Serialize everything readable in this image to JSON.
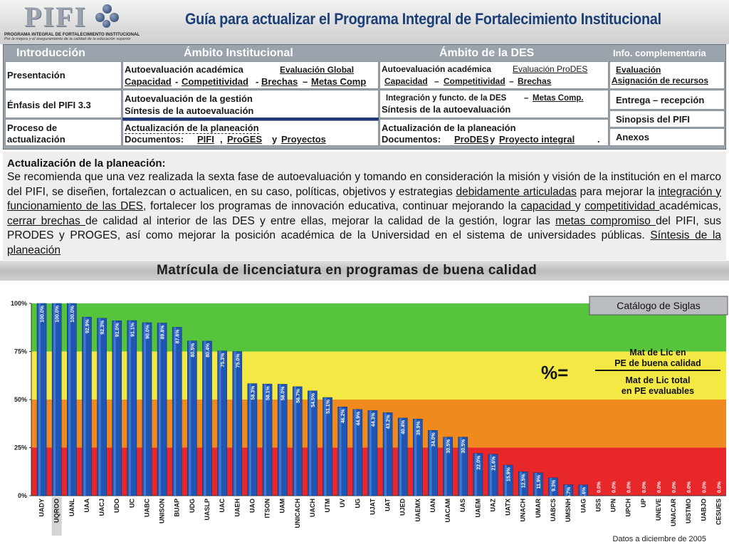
{
  "header": {
    "logo_word": "PIFI",
    "logo_line1": "PROGRAMA INTEGRAL DE FORTALECIMIENTO INSTITUCIONAL",
    "logo_line2": "Por la mejora y el aseguramiento de la calidad de la educación superior",
    "title": "Guía para actualizar el Programa Integral de Fortalecimiento Institucional"
  },
  "nav": {
    "headers": {
      "intro": "Introducción",
      "institucional": "Ámbito Institucional",
      "des": "Ámbito de la DES",
      "info": "Info. complementaria"
    },
    "intro": [
      "Presentación",
      "Énfasis del PIFI 3.3",
      "Proceso de",
      "actualización"
    ],
    "inst_row1": {
      "label": "Autoevaluación académica",
      "link": "Evaluación Global",
      "line2_a": "Capacidad",
      "sep1": "-",
      "line2_b": "Competitividad",
      "sep2": "-",
      "line2_c": "Brechas",
      "sep3": "–",
      "line2_d": "Metas Comp"
    },
    "inst_row2": {
      "line1": "Autoevaluación de la gestión",
      "line2": "Síntesis de la autoevaluación"
    },
    "inst_row3": {
      "line1": "Actualización de la planeación",
      "prefix": "Documentos:",
      "d1": "PIFI",
      "sep": ",",
      "d2": "ProGES",
      "and": "y",
      "d3": "Proyectos"
    },
    "des_row1": {
      "label": "Autoevaluación académica",
      "link": "Evaluación ProDES",
      "l2a": "Capacidad",
      "s1": "–",
      "l2b": "Competitividad",
      "s2": "–",
      "l2c": "Brechas"
    },
    "des_row2": {
      "line1": "Integración y functo. de la DES",
      "sep": "–",
      "link": "Metas Comp.",
      "line2": "Síntesis de la autoevaluación"
    },
    "des_row3": {
      "line1": "Actualización de la planeación",
      "prefix": "Documentos:",
      "d1": "ProDES",
      "and": "y",
      "d2": "Proyecto integral",
      "end": "."
    },
    "info": {
      "eval": "Evaluación",
      "asig": "Asignación de recursos",
      "entrega": "Entrega – recepción",
      "sinopsis": "Sinopsis del PIFI",
      "anexos": "Anexos"
    }
  },
  "description": {
    "title": "Actualización de la planeación:",
    "p1": "Se recomienda que una vez realizada la sexta fase de autoevaluación y tomando en consideración la misión y visión de la institución en el marco del PIFI, se diseñen, fortalezcan o actualicen, en su caso, políticas, objetivos y estrategias ",
    "u1": "debidamente articuladas",
    "p2": " para mejorar la ",
    "u2": "integración y funcionamiento de las DES",
    "p3": ", fortalecer los programas de innovación educativa, continuar mejorando la ",
    "u3": "capacidad ",
    "p4": "y ",
    "u4": "competitividad ",
    "p5": "académicas,  ",
    "u5": "cerrar brechas ",
    "p6": "de calidad al interior de las DES y entre ellas, mejorar la calidad de la gestión, lograr las ",
    "u6": "metas compromiso ",
    "p7": "del PIFI, sus PRODES y PROGES, así como mejorar la posición académica de la Universidad en el sistema de universidades públicas. ",
    "u7": "Síntesis de la planeación"
  },
  "chart_banner": "Matrícula de licenciatura en programas de buena calidad",
  "chart_data": {
    "type": "bar",
    "title": "Matrícula de licenciatura en programas de buena calidad",
    "ylim": [
      0,
      100
    ],
    "yticks": [
      "0%",
      "25%",
      "50%",
      "75%",
      "100%"
    ],
    "bands": [
      {
        "from": 0,
        "to": 25,
        "color": "#e8272b"
      },
      {
        "from": 25,
        "to": 50,
        "color": "#f08a1e"
      },
      {
        "from": 50,
        "to": 75,
        "color": "#f3e844"
      },
      {
        "from": 75,
        "to": 100,
        "color": "#56c43c"
      }
    ],
    "bar_color": "#1f56b3",
    "categories": [
      "UADY",
      "UQROO",
      "UANL",
      "UAA",
      "UACJ",
      "UDO",
      "UC",
      "UABC",
      "UNISON",
      "BUAP",
      "UDG",
      "UASLP",
      "UAC",
      "UAEH",
      "UAO",
      "ITSON",
      "UAM",
      "UNICACH",
      "UACH",
      "UTM",
      "UV",
      "UG",
      "UJAT",
      "UAT",
      "UJED",
      "UAEMX",
      "UAN",
      "UACAM",
      "UAS",
      "UAEM",
      "UAZ",
      "UATX",
      "UNACH",
      "UMAR",
      "UABCS",
      "UMSNH",
      "UAG",
      "USS",
      "UPN",
      "UPCH",
      "UP",
      "UNEVE",
      "UNACAR",
      "UISTMO",
      "UABJO",
      "CESUES"
    ],
    "values": [
      100.0,
      100.0,
      100.0,
      92.9,
      92.3,
      91.0,
      91.1,
      90.0,
      89.8,
      87.6,
      80.5,
      80.4,
      75.3,
      75.0,
      58.3,
      58.1,
      58.0,
      56.7,
      54.5,
      51.1,
      46.2,
      44.9,
      44.3,
      43.2,
      40.4,
      39.9,
      34.0,
      30.5,
      30.5,
      22.0,
      21.6,
      15.9,
      12.5,
      11.9,
      9.3,
      5.7,
      5.6,
      0.0,
      0.0,
      0.0,
      0.0,
      0.0,
      0.0,
      0.0,
      0.0,
      0.0
    ],
    "labels": [
      "100.0%",
      "100.0%",
      "100.0%",
      "92.9%",
      "92.3%",
      "91.0%",
      "91.1%",
      "90.0%",
      "89.8%",
      "87.6%",
      "80.5%",
      "80.4%",
      "75.3%",
      "75.0%",
      "58.3%",
      "58.1%",
      "58.0%",
      "56.7%",
      "54.5%",
      "51.1%",
      "46.2%",
      "44.9%",
      "44.3%",
      "43.2%",
      "40.4%",
      "39.9%",
      "34.0%",
      "30.5%",
      "30.5%",
      "22.0%",
      "21.6%",
      "15.9%",
      "12.5%",
      "11.9%",
      "9.3%",
      "5.7%",
      "5.6%",
      "0.0%",
      "0.0%",
      "0.0%",
      "0.0%",
      "0.0%",
      "0.0%",
      "0.0%",
      "0.0%",
      "0.0%"
    ],
    "catalog_button": "Catálogo de Siglas",
    "formula": {
      "lhs": "%=",
      "num1": "Mat de Lic en",
      "num2": "PE de buena calidad",
      "den1": "Mat de Lic total",
      "den2": "en PE evaluables"
    },
    "footnote": "Datos a diciembre de 2005"
  }
}
